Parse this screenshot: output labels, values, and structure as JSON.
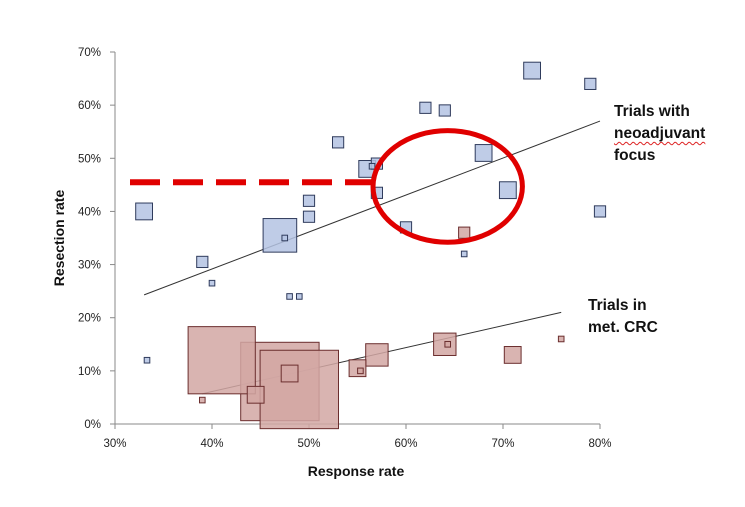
{
  "chart_data": {
    "type": "scatter",
    "xlabel": "Response rate",
    "ylabel": "Resection rate",
    "xlim": [
      0.3,
      0.8
    ],
    "ylim": [
      0.0,
      0.7
    ],
    "x_ticks": [
      "30%",
      "40%",
      "50%",
      "60%",
      "70%",
      "80%"
    ],
    "y_ticks": [
      "0%",
      "10%",
      "20%",
      "30%",
      "40%",
      "50%",
      "60%",
      "70%"
    ],
    "grid": false,
    "series": [
      {
        "color": "#b4c3e3",
        "edge": "#2f3b5c",
        "points": [
          {
            "x": 0.33,
            "y": 0.4,
            "size": 3
          },
          {
            "x": 0.333,
            "y": 0.12,
            "size": 1
          },
          {
            "x": 0.39,
            "y": 0.305,
            "size": 2
          },
          {
            "x": 0.4,
            "y": 0.265,
            "size": 1
          },
          {
            "x": 0.47,
            "y": 0.355,
            "size": 6
          },
          {
            "x": 0.475,
            "y": 0.35,
            "size": 1
          },
          {
            "x": 0.48,
            "y": 0.24,
            "size": 1
          },
          {
            "x": 0.49,
            "y": 0.24,
            "size": 1
          },
          {
            "x": 0.5,
            "y": 0.42,
            "size": 2
          },
          {
            "x": 0.5,
            "y": 0.39,
            "size": 2
          },
          {
            "x": 0.53,
            "y": 0.53,
            "size": 2
          },
          {
            "x": 0.56,
            "y": 0.48,
            "size": 3
          },
          {
            "x": 0.565,
            "y": 0.485,
            "size": 1
          },
          {
            "x": 0.57,
            "y": 0.49,
            "size": 2
          },
          {
            "x": 0.57,
            "y": 0.435,
            "size": 2
          },
          {
            "x": 0.6,
            "y": 0.37,
            "size": 2
          },
          {
            "x": 0.62,
            "y": 0.595,
            "size": 2
          },
          {
            "x": 0.64,
            "y": 0.59,
            "size": 2
          },
          {
            "x": 0.66,
            "y": 0.32,
            "size": 1
          },
          {
            "x": 0.68,
            "y": 0.51,
            "size": 3
          },
          {
            "x": 0.705,
            "y": 0.44,
            "size": 3
          },
          {
            "x": 0.73,
            "y": 0.665,
            "size": 3
          },
          {
            "x": 0.79,
            "y": 0.64,
            "size": 2
          },
          {
            "x": 0.8,
            "y": 0.4,
            "size": 2
          }
        ],
        "trend": {
          "x": [
            0.33,
            0.8
          ],
          "y": [
            0.243,
            0.57
          ]
        }
      },
      {
        "color": "#d2a7a3",
        "edge": "#6b2e2e",
        "points": [
          {
            "x": 0.39,
            "y": 0.045,
            "size": 1
          },
          {
            "x": 0.41,
            "y": 0.12,
            "size": 12
          },
          {
            "x": 0.445,
            "y": 0.055,
            "size": 3
          },
          {
            "x": 0.47,
            "y": 0.08,
            "size": 14
          },
          {
            "x": 0.48,
            "y": 0.095,
            "size": 3
          },
          {
            "x": 0.49,
            "y": 0.065,
            "size": 14
          },
          {
            "x": 0.55,
            "y": 0.105,
            "size": 3
          },
          {
            "x": 0.553,
            "y": 0.1,
            "size": 1
          },
          {
            "x": 0.57,
            "y": 0.13,
            "size": 4
          },
          {
            "x": 0.64,
            "y": 0.15,
            "size": 4
          },
          {
            "x": 0.643,
            "y": 0.15,
            "size": 1
          },
          {
            "x": 0.66,
            "y": 0.36,
            "size": 2
          },
          {
            "x": 0.71,
            "y": 0.13,
            "size": 3
          },
          {
            "x": 0.76,
            "y": 0.16,
            "size": 1
          }
        ],
        "trend": {
          "x": [
            0.39,
            0.76
          ],
          "y": [
            0.057,
            0.21
          ]
        }
      }
    ],
    "annotations": [
      {
        "lines": [
          "Trials with",
          "neoadjuvant",
          "focus"
        ],
        "underlined_word": "neoadjuvant"
      },
      {
        "lines": [
          "Trials in",
          "met. CRC"
        ]
      }
    ],
    "highlight": {
      "dashed_line": {
        "y": 0.455,
        "x_end": 0.57,
        "color": "#e00000"
      },
      "ellipse": {
        "cx": 0.643,
        "cy": 0.447,
        "rx": 0.077,
        "ry": 0.105,
        "color": "#e00000"
      }
    }
  }
}
